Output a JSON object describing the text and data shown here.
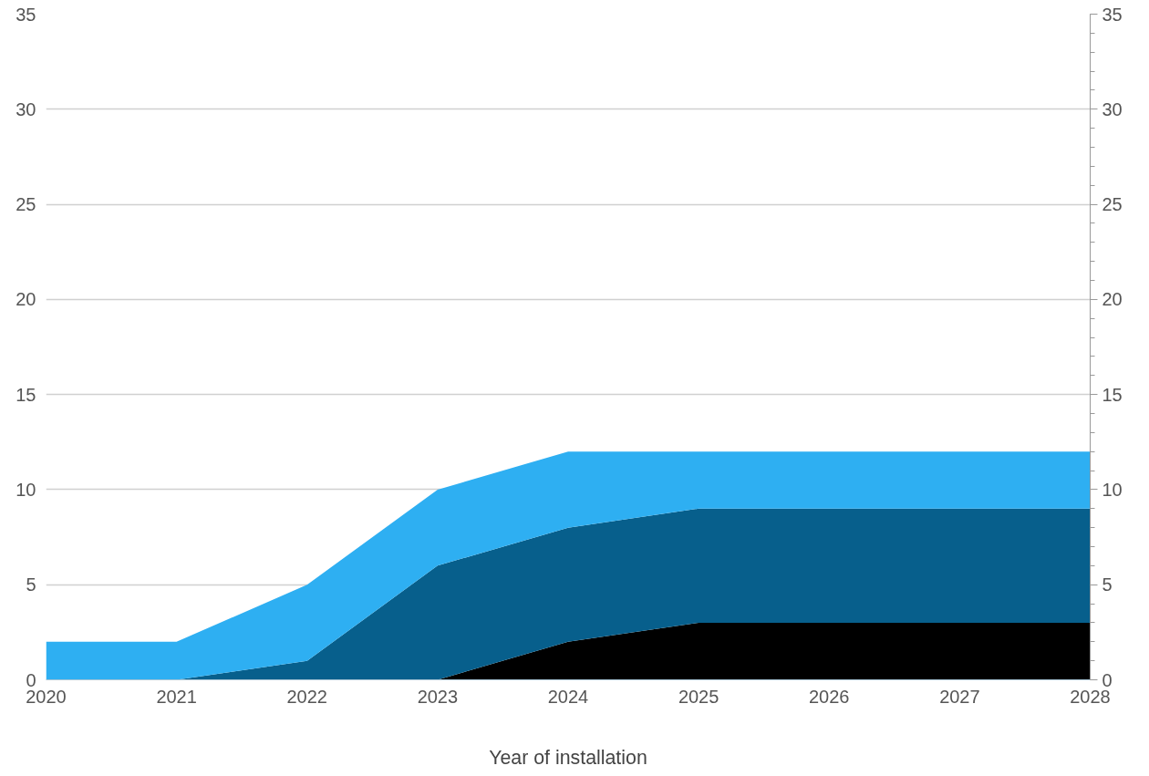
{
  "chart_data": {
    "type": "area",
    "stacked": true,
    "xlabel": "Year of installation",
    "x": [
      2020,
      2021,
      2022,
      2023,
      2024,
      2025,
      2026,
      2027,
      2028
    ],
    "series": [
      {
        "color": "#000000",
        "values": [
          0,
          0,
          0,
          0,
          2,
          3,
          3,
          3,
          3
        ]
      },
      {
        "color": "#075f8c",
        "values": [
          0,
          0,
          1,
          6,
          6,
          6,
          6,
          6,
          6
        ]
      },
      {
        "color": "#2eaff2",
        "values": [
          2,
          2,
          4,
          4,
          4,
          3,
          3,
          3,
          3
        ]
      }
    ],
    "xlim": [
      2020,
      2028
    ],
    "xticks": [
      2020,
      2021,
      2022,
      2023,
      2024,
      2025,
      2026,
      2027,
      2028
    ],
    "ylim": [
      0,
      35
    ],
    "yticks": [
      0,
      5,
      10,
      15,
      20,
      25,
      30,
      35
    ],
    "y2lim": [
      0,
      35
    ],
    "y2ticks": [
      0,
      5,
      10,
      15,
      20,
      25,
      30,
      35
    ],
    "grid": "y"
  }
}
